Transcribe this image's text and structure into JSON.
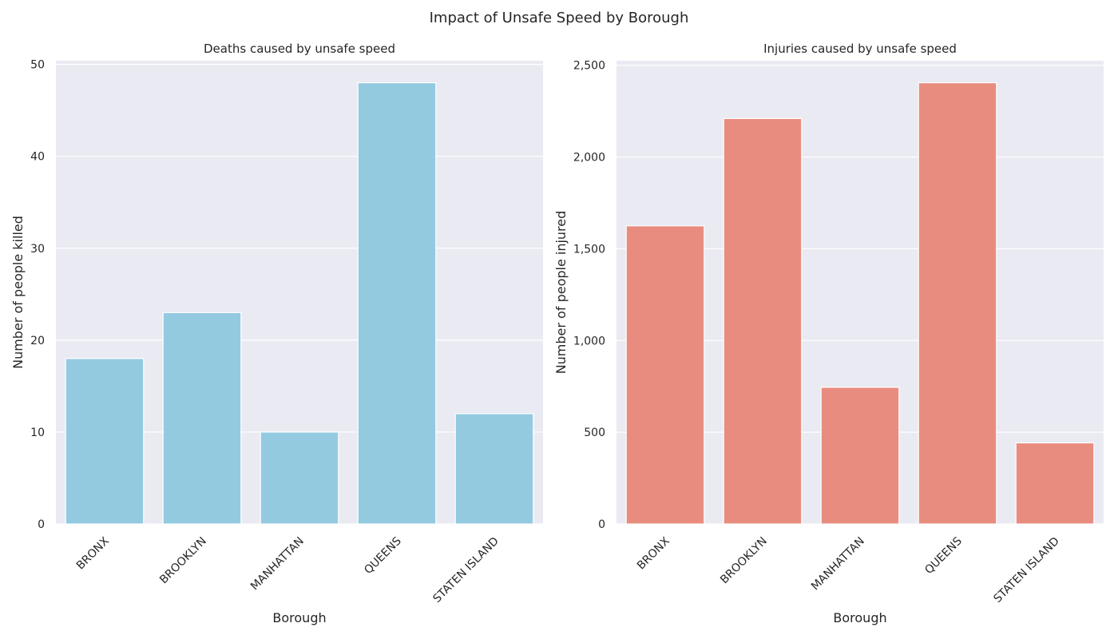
{
  "figure": {
    "title": "Impact of Unsafe Speed by Borough"
  },
  "chart_data": [
    {
      "type": "bar",
      "title": "Deaths caused by unsafe speed",
      "xlabel": "Borough",
      "ylabel": "Number of people killed",
      "categories": [
        "BRONX",
        "BROOKLYN",
        "MANHATTAN",
        "QUEENS",
        "STATEN ISLAND"
      ],
      "values": [
        18,
        23,
        10,
        48,
        12
      ],
      "ylim": [
        0,
        50.4
      ],
      "yticks": [
        0,
        10,
        20,
        30,
        40,
        50
      ],
      "ytick_labels": [
        "0",
        "10",
        "20",
        "30",
        "40",
        "50"
      ],
      "color": "#93cae0",
      "grid": true,
      "legend": "none"
    },
    {
      "type": "bar",
      "title": "Injuries caused by unsafe speed",
      "xlabel": "Borough",
      "ylabel": "Number of people injured",
      "categories": [
        "BRONX",
        "BROOKLYN",
        "MANHATTAN",
        "QUEENS",
        "STATEN ISLAND"
      ],
      "values": [
        1625,
        2210,
        745,
        2405,
        442
      ],
      "ylim": [
        0,
        2525
      ],
      "yticks": [
        0,
        500,
        1000,
        1500,
        2000,
        2500
      ],
      "ytick_labels": [
        "0",
        "500",
        "1,000",
        "1,500",
        "2,000",
        "2,500"
      ],
      "color": "#e98c80",
      "grid": true,
      "legend": "none"
    }
  ]
}
